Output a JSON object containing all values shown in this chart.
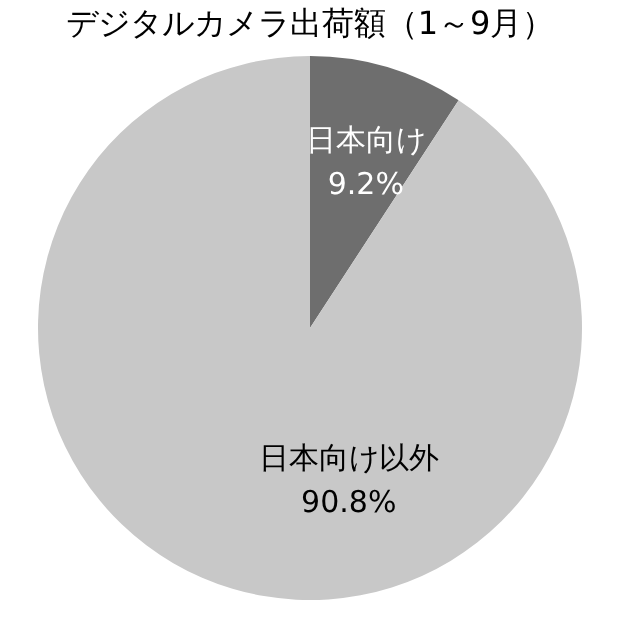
{
  "chart_data": {
    "type": "pie",
    "title": "デジタルカメラ出荷額（1～9月）",
    "categories": [
      "日本向け",
      "日本向け以外"
    ],
    "values": [
      9.2,
      90.8
    ],
    "colors": [
      "#6e6e6e",
      "#c8c8c8"
    ],
    "value_labels": [
      "9.2%",
      "90.8%"
    ],
    "legend": false
  }
}
